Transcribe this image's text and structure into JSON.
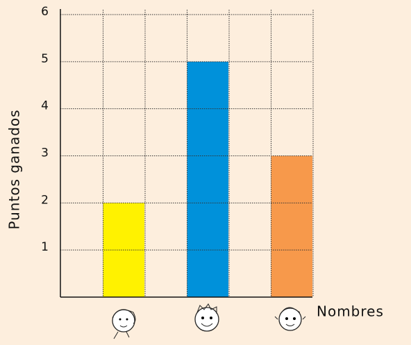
{
  "chart_data": {
    "type": "bar",
    "y_label": "Puntos ganados",
    "x_label": "Nombres",
    "categories": [
      null,
      null,
      null
    ],
    "values": [
      2,
      5,
      3
    ],
    "colors": [
      "#fff200",
      "#0091da",
      "#f7994b"
    ],
    "ylim": [
      0,
      6
    ],
    "yticks": [
      1,
      2,
      3,
      4,
      5,
      6
    ],
    "grid": true
  }
}
